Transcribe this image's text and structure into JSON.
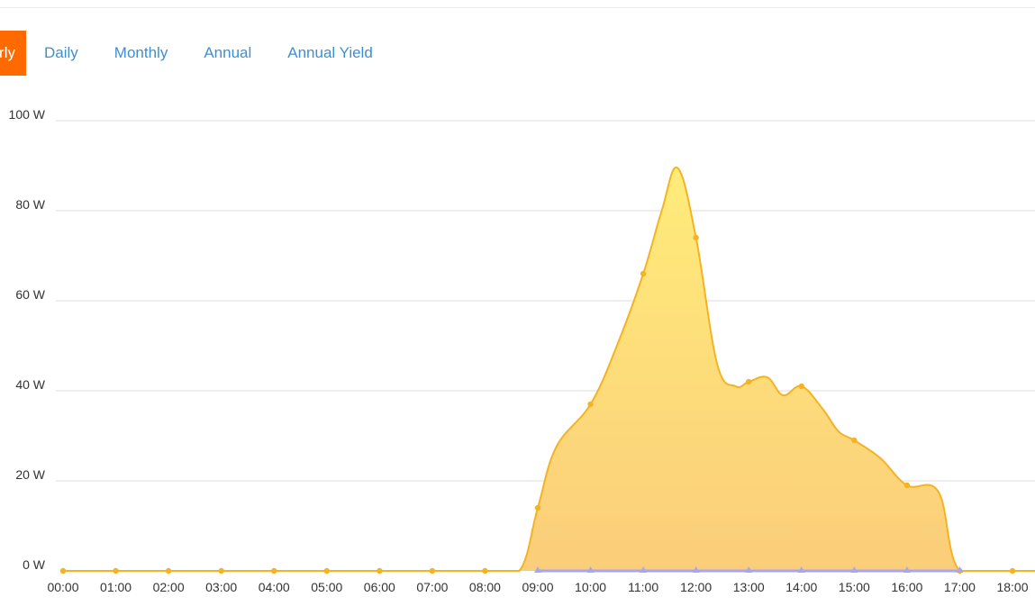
{
  "tabs": [
    {
      "label": "Hourly",
      "active": true
    },
    {
      "label": "Daily",
      "active": false
    },
    {
      "label": "Monthly",
      "active": false
    },
    {
      "label": "Annual",
      "active": false
    },
    {
      "label": "Annual Yield",
      "active": false
    }
  ],
  "colors": {
    "accent": "#ff6a00",
    "tab_text": "#3f8fd0",
    "line": "#f5b324",
    "fill_top": "#ffec7a",
    "fill_bottom": "#fbcd7a",
    "secondary": "#a6a6f2",
    "grid": "#dddddd"
  },
  "chart_data": {
    "type": "area",
    "y_ticks": [
      "0 W",
      "20 W",
      "40 W",
      "60 W",
      "80 W",
      "100 W"
    ],
    "ylim": [
      0,
      100
    ],
    "x_ticks": [
      "00:00",
      "01:00",
      "02:00",
      "03:00",
      "04:00",
      "05:00",
      "06:00",
      "07:00",
      "08:00",
      "09:00",
      "10:00",
      "11:00",
      "12:00",
      "13:00",
      "14:00",
      "15:00",
      "16:00",
      "17:00",
      "18:00"
    ],
    "xlim": [
      0,
      18
    ],
    "grid": true,
    "series": [
      {
        "marker": "circle",
        "points": [
          [
            0,
            0
          ],
          [
            1,
            0
          ],
          [
            2,
            0
          ],
          [
            3,
            0
          ],
          [
            4,
            0
          ],
          [
            5,
            0
          ],
          [
            6,
            0
          ],
          [
            7,
            0
          ],
          [
            8,
            0
          ],
          [
            8.65,
            0
          ],
          [
            9.0,
            14
          ],
          [
            9.35,
            27.5
          ],
          [
            10.0,
            37
          ],
          [
            10.5,
            50
          ],
          [
            11.0,
            66
          ],
          [
            11.35,
            80
          ],
          [
            11.65,
            89.5
          ],
          [
            12.0,
            74
          ],
          [
            12.4,
            46
          ],
          [
            12.75,
            41
          ],
          [
            13.0,
            42
          ],
          [
            13.35,
            43
          ],
          [
            13.65,
            39
          ],
          [
            14.0,
            41
          ],
          [
            14.4,
            36
          ],
          [
            14.7,
            31
          ],
          [
            15.0,
            29
          ],
          [
            15.5,
            25
          ],
          [
            16.0,
            19
          ],
          [
            16.6,
            17.5
          ],
          [
            17.0,
            0
          ],
          [
            18.0,
            0
          ]
        ],
        "marked_x": [
          0,
          1,
          2,
          3,
          4,
          5,
          6,
          7,
          8,
          9,
          10,
          11,
          12,
          13,
          14,
          15,
          16,
          17,
          18
        ]
      },
      {
        "marker": "triangle",
        "points": [
          [
            9,
            0
          ],
          [
            10,
            0
          ],
          [
            11,
            0
          ],
          [
            12,
            0
          ],
          [
            13,
            0
          ],
          [
            14,
            0
          ],
          [
            15,
            0
          ],
          [
            16,
            0
          ],
          [
            17,
            0
          ]
        ]
      }
    ]
  }
}
